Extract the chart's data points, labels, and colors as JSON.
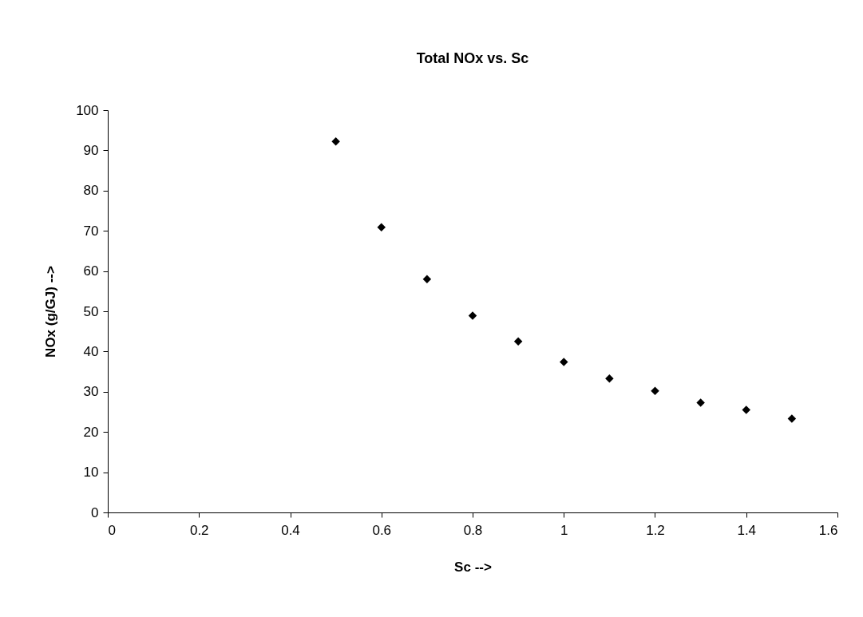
{
  "chart_data": {
    "type": "scatter",
    "title": "Total NOx vs. Sc",
    "xlabel": "Sc -->",
    "ylabel": "NOx (g/GJ) -->",
    "x": [
      0.5,
      0.6,
      0.7,
      0.8,
      0.9,
      1.0,
      1.1,
      1.2,
      1.3,
      1.4,
      1.5
    ],
    "series": [
      {
        "color": "#000000",
        "values": [
          92.2,
          70.9,
          58.0,
          48.9,
          42.5,
          37.4,
          33.3,
          30.2,
          27.3,
          25.5,
          23.3
        ]
      }
    ],
    "xlim": [
      0,
      1.6
    ],
    "xticks": [
      0,
      0.2,
      0.4,
      0.6,
      0.8,
      1,
      1.2,
      1.4,
      1.6
    ],
    "ylim": [
      0,
      100
    ],
    "yticks": [
      0,
      10,
      20,
      30,
      40,
      50,
      60,
      70,
      80,
      90,
      100
    ],
    "grid": false,
    "legend": false,
    "marker": "diamond"
  }
}
